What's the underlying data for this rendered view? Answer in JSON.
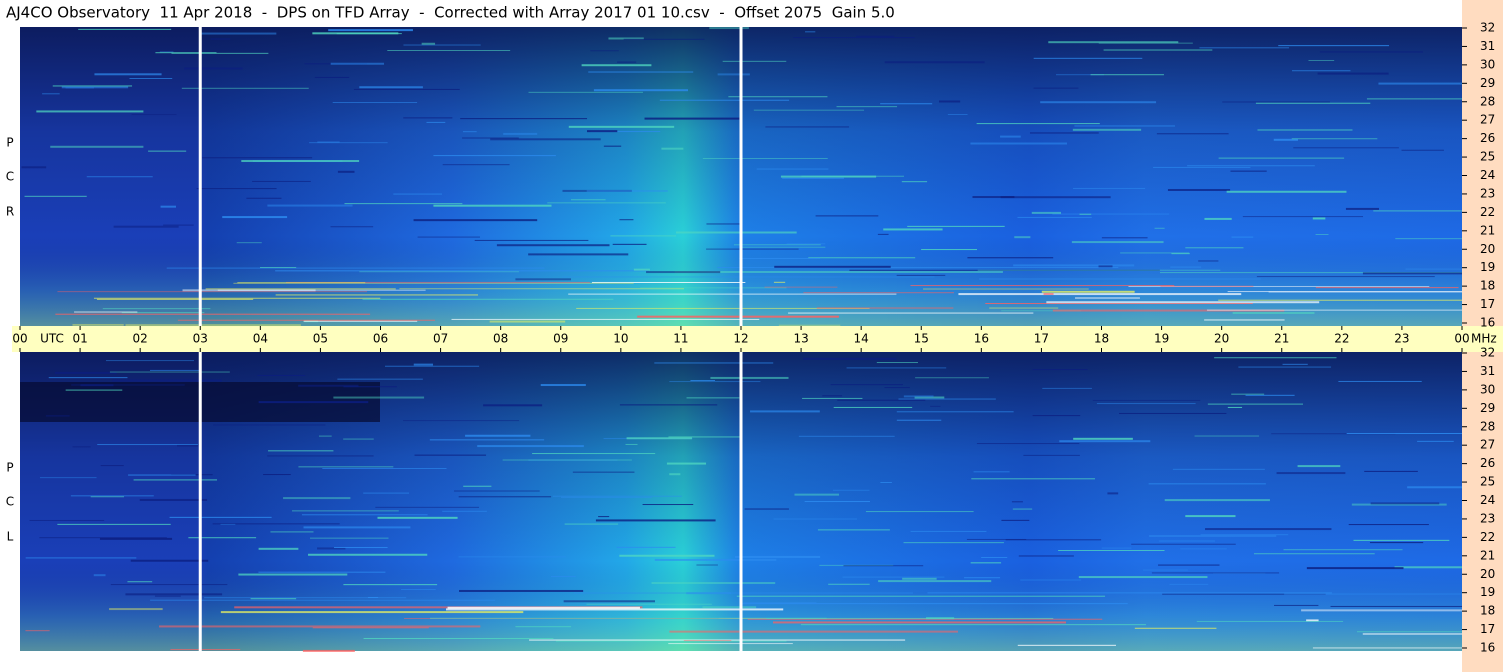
{
  "header": {
    "title": "AJ4CO Observatory  11 Apr 2018  -  DPS on TFD Array  -  Corrected with Array 2017 01 10.csv  -  Offset 2075  Gain 5.0"
  },
  "x_axis": {
    "labels": [
      "00",
      "01",
      "02",
      "03",
      "04",
      "05",
      "06",
      "07",
      "08",
      "09",
      "10",
      "11",
      "12",
      "13",
      "14",
      "15",
      "16",
      "17",
      "18",
      "19",
      "20",
      "21",
      "22",
      "23",
      "00"
    ],
    "time_unit": "UTC",
    "freq_unit": "MHz"
  },
  "panels": [
    {
      "side_letters": [
        "R",
        "C",
        "P"
      ],
      "freq_labels": [
        "16",
        "17",
        "18",
        "19",
        "20",
        "21",
        "22",
        "23",
        "24",
        "25",
        "26",
        "27",
        "28",
        "29",
        "30",
        "31",
        "32"
      ]
    },
    {
      "side_letters": [
        "L",
        "C",
        "P"
      ],
      "freq_labels": [
        "16",
        "17",
        "18",
        "19",
        "20",
        "21",
        "22",
        "23",
        "24",
        "25",
        "26",
        "27",
        "28",
        "29",
        "30",
        "31",
        "32"
      ]
    }
  ]
}
